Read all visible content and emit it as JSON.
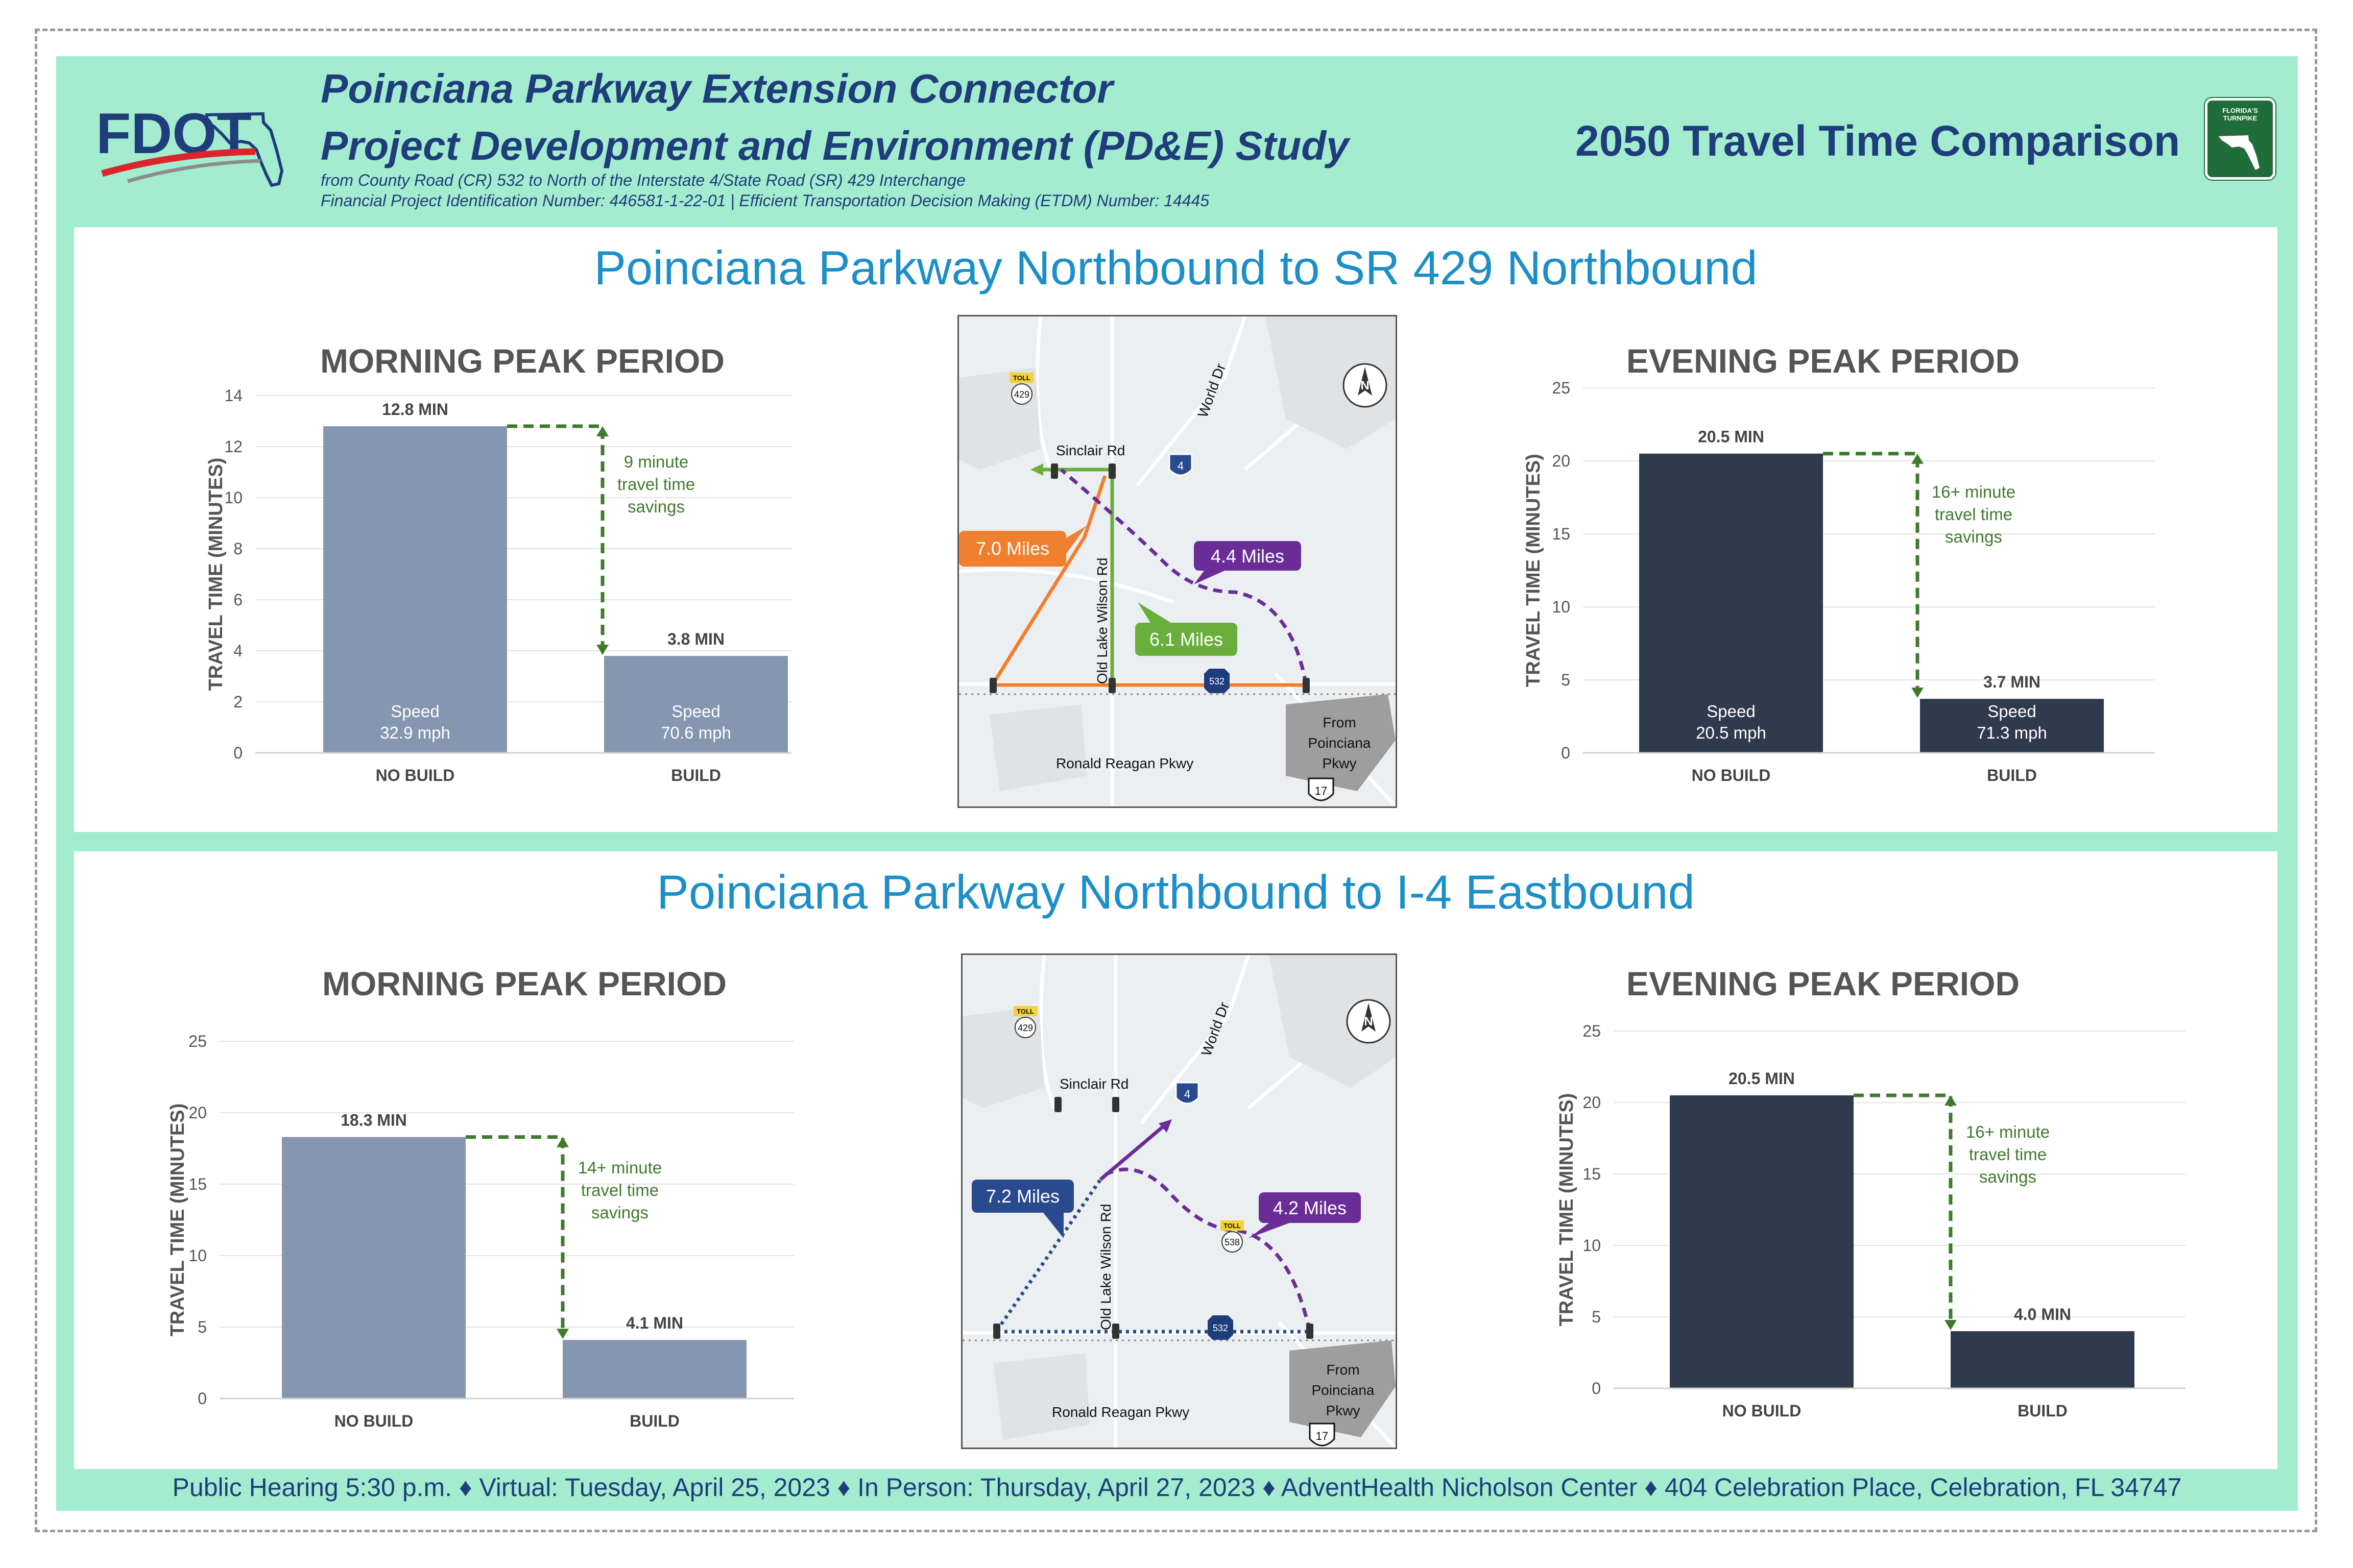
{
  "header": {
    "logo_text": "FDOT",
    "title_line1": "Poinciana Parkway Extension Connector",
    "title_line2": "Project Development and Environment (PD&E) Study",
    "subtitle_line1": "from County Road (CR) 532 to North of the Interstate 4/State Road (SR) 429 Interchange",
    "subtitle_line2": "Financial Project Identification Number: 446581-1-22-01 | Efficient Transportation Decision Making (ETDM) Number: 14445",
    "right_title": "2050 Travel Time Comparison",
    "turnpike_logo_text": "FLORIDA'S TURNPIKE"
  },
  "colors": {
    "background": "#a3ecd0",
    "title_blue": "#1c8fc9",
    "navy": "#1f3d7a",
    "morning_bar": "#8597b0",
    "evening_bar": "#303a4d",
    "savings_green": "#3f7a2c",
    "route_orange": "#f07f2e",
    "route_green": "#6aaf3c",
    "route_purple": "#6a2d97",
    "route_blue": "#2a4a8f"
  },
  "sections": [
    {
      "title": "Poinciana Parkway Northbound to SR 429 Northbound",
      "morning": {
        "chart_data": {
          "type": "bar",
          "title": "MORNING PEAK PERIOD",
          "ylabel": "TRAVEL TIME (MINUTES)",
          "categories": [
            "NO BUILD",
            "BUILD"
          ],
          "values": [
            12.8,
            3.8
          ],
          "value_labels": [
            "12.8 MIN",
            "3.8 MIN"
          ],
          "speed_labels": [
            [
              "Speed",
              "32.9 mph"
            ],
            [
              "Speed",
              "70.6 mph"
            ]
          ],
          "ylim": [
            0,
            14
          ],
          "yticks": [
            0,
            2,
            4,
            6,
            8,
            10,
            12,
            14
          ],
          "savings_text": [
            "9 minute",
            "travel time",
            "savings"
          ],
          "bar_color": "#8597b0"
        }
      },
      "evening": {
        "chart_data": {
          "type": "bar",
          "title": "EVENING PEAK PERIOD",
          "ylabel": "TRAVEL TIME (MINUTES)",
          "categories": [
            "NO BUILD",
            "BUILD"
          ],
          "values": [
            20.5,
            3.7
          ],
          "value_labels": [
            "20.5 MIN",
            "3.7 MIN"
          ],
          "speed_labels": [
            [
              "Speed",
              "20.5 mph"
            ],
            [
              "Speed",
              "71.3 mph"
            ]
          ],
          "ylim": [
            0,
            25
          ],
          "yticks": [
            0,
            5,
            10,
            15,
            20,
            25
          ],
          "savings_text": [
            "16+ minute",
            "travel time",
            "savings"
          ],
          "bar_color": "#303a4d"
        }
      },
      "map": {
        "labels": {
          "sinclair": "Sinclair Rd",
          "world": "World Dr",
          "old_lake": "Old Lake Wilson Rd",
          "reagan": "Ronald Reagan Pkwy",
          "from_line1": "From",
          "from_line2": "Poinciana",
          "from_line3": "Pkwy",
          "toll": "TOLL",
          "sr429": "429",
          "i4": "4",
          "cr532": "532",
          "us17": "17"
        },
        "routes": [
          {
            "label": "7.0 Miles",
            "color": "#f07f2e"
          },
          {
            "label": "6.1 Miles",
            "color": "#6aaf3c"
          },
          {
            "label": "4.4 Miles",
            "color": "#6a2d97"
          }
        ]
      }
    },
    {
      "title": "Poinciana Parkway Northbound to I-4 Eastbound",
      "morning": {
        "chart_data": {
          "type": "bar",
          "title": "MORNING PEAK PERIOD",
          "ylabel": "TRAVEL TIME (MINUTES)",
          "categories": [
            "NO BUILD",
            "BUILD"
          ],
          "values": [
            18.3,
            4.1
          ],
          "value_labels": [
            "18.3 MIN",
            "4.1 MIN"
          ],
          "speed_labels": [],
          "ylim": [
            0,
            25
          ],
          "yticks": [
            0,
            5,
            10,
            15,
            20,
            25
          ],
          "savings_text": [
            "14+ minute",
            "travel time",
            "savings"
          ],
          "bar_color": "#8597b0"
        }
      },
      "evening": {
        "chart_data": {
          "type": "bar",
          "title": "EVENING PEAK PERIOD",
          "ylabel": "TRAVEL TIME (MINUTES)",
          "categories": [
            "NO BUILD",
            "BUILD"
          ],
          "values": [
            20.5,
            4.0
          ],
          "value_labels": [
            "20.5 MIN",
            "4.0 MIN"
          ],
          "speed_labels": [],
          "ylim": [
            0,
            25
          ],
          "yticks": [
            0,
            5,
            10,
            15,
            20,
            25
          ],
          "savings_text": [
            "16+ minute",
            "travel time",
            "savings"
          ],
          "bar_color": "#303a4d"
        }
      },
      "map": {
        "labels": {
          "sinclair": "Sinclair Rd",
          "world": "World Dr",
          "old_lake": "Old Lake Wilson Rd",
          "reagan": "Ronald Reagan Pkwy",
          "from_line1": "From",
          "from_line2": "Poinciana",
          "from_line3": "Pkwy",
          "toll": "TOLL",
          "sr429": "429",
          "sr538": "538",
          "i4": "4",
          "cr532": "532",
          "us17": "17"
        },
        "routes": [
          {
            "label": "7.2 Miles",
            "color": "#2a4a8f"
          },
          {
            "label": "4.2 Miles",
            "color": "#6a2d97"
          }
        ]
      }
    }
  ],
  "footer": "Public Hearing 5:30 p.m. ♦ Virtual: Tuesday, April 25, 2023 ♦ In Person: Thursday, April 27, 2023 ♦  AdventHealth Nicholson Center ♦ 404 Celebration Place, Celebration, FL 34747"
}
